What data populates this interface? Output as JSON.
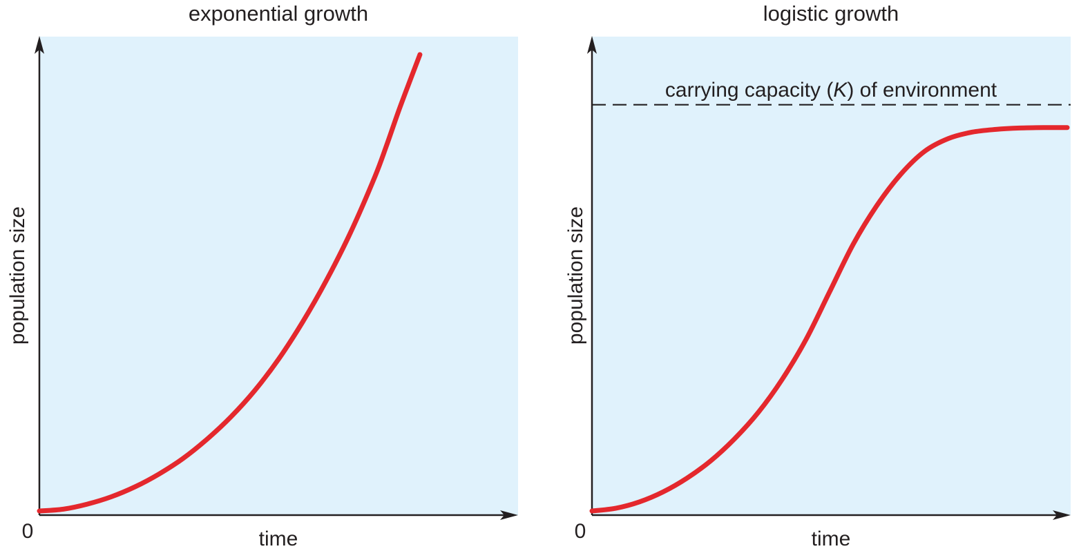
{
  "chart_data": [
    {
      "type": "line",
      "title": "exponential growth",
      "xlabel": "time",
      "ylabel": "population size",
      "origin_label": "0",
      "ticks": false,
      "grid": false,
      "legend": "none",
      "xlim": [
        0,
        100
      ],
      "ylim": [
        0,
        100
      ],
      "series": [
        {
          "x": [
            0,
            5,
            10,
            15,
            20,
            25,
            30,
            35,
            40,
            45,
            50,
            55,
            60,
            65,
            70,
            72.5,
            75,
            77.5,
            79.5
          ],
          "y": [
            0,
            0.4,
            1.5,
            3.1,
            5.3,
            8.1,
            11.5,
            15.7,
            20.6,
            26.4,
            33.3,
            41.4,
            50.6,
            61.0,
            73.0,
            80.0,
            87.5,
            94.5,
            100
          ]
        }
      ],
      "colors": {
        "background": "#e0f2fc",
        "curve": "#e4282d",
        "axis": "#231f20"
      }
    },
    {
      "type": "line",
      "title": "logistic growth",
      "xlabel": "time",
      "ylabel": "population size",
      "origin_label": "0",
      "ticks": false,
      "grid": false,
      "legend": "none",
      "xlim": [
        0,
        100
      ],
      "ylim": [
        0,
        100
      ],
      "carrying_capacity": {
        "label_prefix": "carrying capacity (",
        "label_symbol": "K",
        "label_suffix": ") of environment",
        "y": 89,
        "style": "dashed"
      },
      "series": [
        {
          "x": [
            0,
            5,
            10,
            15,
            20,
            25,
            30,
            35,
            40,
            45,
            50,
            55,
            60,
            65,
            70,
            75,
            80,
            85,
            90,
            95,
            100
          ],
          "y": [
            0,
            0.6,
            2.0,
            4.2,
            7.2,
            11.0,
            15.8,
            21.6,
            28.8,
            37.5,
            48.0,
            58.5,
            67.0,
            73.8,
            78.8,
            81.6,
            83.0,
            83.6,
            83.9,
            84.0,
            84.0
          ]
        }
      ],
      "colors": {
        "background": "#e0f2fc",
        "curve": "#e4282d",
        "axis": "#231f20",
        "dash": "#231f20"
      }
    }
  ]
}
